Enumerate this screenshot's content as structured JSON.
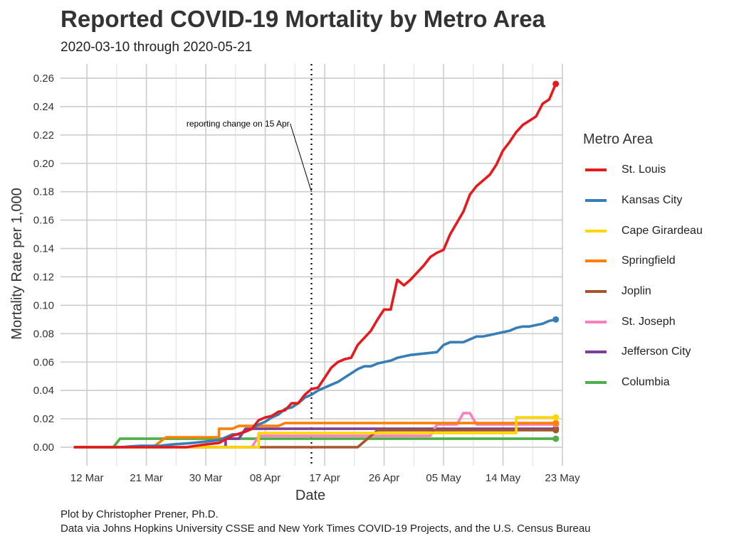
{
  "title": "Reported COVID-19 Mortality by Metro Area",
  "subtitle": "2020-03-10 through 2020-05-21",
  "caption_line1": "Plot by Christopher Prener, Ph.D.",
  "caption_line2": "Data via Johns Hopkins University CSSE and New York Times COVID-19 Projects, and the U.S. Census Bureau",
  "chart_data": {
    "type": "line",
    "xlabel": "Date",
    "ylabel": "Mortality Rate per 1,000",
    "xlim": [
      "2020-03-08",
      "2020-05-23"
    ],
    "ylim": [
      -0.013,
      0.27
    ],
    "x_ticks": [
      "2020-03-12",
      "2020-03-21",
      "2020-03-30",
      "2020-04-08",
      "2020-04-17",
      "2020-04-26",
      "2020-05-05",
      "2020-05-14",
      "2020-05-23"
    ],
    "x_tick_labels": [
      "12 Mar",
      "21 Mar",
      "30 Mar",
      "08 Apr",
      "17 Apr",
      "26 Apr",
      "05 May",
      "14 May",
      "23 May"
    ],
    "y_ticks": [
      0,
      0.02,
      0.04,
      0.06,
      0.08,
      0.1,
      0.12,
      0.14,
      0.16,
      0.18,
      0.2,
      0.22,
      0.24,
      0.26
    ],
    "y_tick_labels": [
      "0.00",
      "0.02",
      "0.04",
      "0.06",
      "0.08",
      "0.10",
      "0.12",
      "0.14",
      "0.16",
      "0.18",
      "0.20",
      "0.22",
      "0.24",
      "0.26"
    ],
    "grid": true,
    "legend_title": "Metro Area",
    "legend_position": "right",
    "annotation": {
      "date": "2020-04-15",
      "text": "reporting change on 15 Apr",
      "text_date": "2020-04-12",
      "text_y": 0.228,
      "arrow_end_y": 0.18
    },
    "series": [
      {
        "name": "St. Louis",
        "color": "#e41a1c",
        "points": [
          [
            "2020-03-10",
            0
          ],
          [
            "2020-03-27",
            0
          ],
          [
            "2020-03-30",
            0.002
          ],
          [
            "2020-04-01",
            0.003
          ],
          [
            "2020-04-03",
            0.008
          ],
          [
            "2020-04-05",
            0.011
          ],
          [
            "2020-04-06",
            0.013
          ],
          [
            "2020-04-07",
            0.019
          ],
          [
            "2020-04-08",
            0.021
          ],
          [
            "2020-04-09",
            0.022
          ],
          [
            "2020-04-10",
            0.025
          ],
          [
            "2020-04-11",
            0.026
          ],
          [
            "2020-04-12",
            0.031
          ],
          [
            "2020-04-13",
            0.031
          ],
          [
            "2020-04-14",
            0.037
          ],
          [
            "2020-04-15",
            0.041
          ],
          [
            "2020-04-16",
            0.042
          ],
          [
            "2020-04-17",
            0.049
          ],
          [
            "2020-04-18",
            0.056
          ],
          [
            "2020-04-19",
            0.06
          ],
          [
            "2020-04-20",
            0.062
          ],
          [
            "2020-04-21",
            0.063
          ],
          [
            "2020-04-22",
            0.072
          ],
          [
            "2020-04-23",
            0.077
          ],
          [
            "2020-04-24",
            0.082
          ],
          [
            "2020-04-25",
            0.09
          ],
          [
            "2020-04-26",
            0.097
          ],
          [
            "2020-04-27",
            0.097
          ],
          [
            "2020-04-28",
            0.118
          ],
          [
            "2020-04-29",
            0.114
          ],
          [
            "2020-04-30",
            0.118
          ],
          [
            "2020-05-01",
            0.123
          ],
          [
            "2020-05-02",
            0.128
          ],
          [
            "2020-05-03",
            0.134
          ],
          [
            "2020-05-04",
            0.137
          ],
          [
            "2020-05-05",
            0.139
          ],
          [
            "2020-05-06",
            0.15
          ],
          [
            "2020-05-07",
            0.158
          ],
          [
            "2020-05-08",
            0.166
          ],
          [
            "2020-05-09",
            0.178
          ],
          [
            "2020-05-10",
            0.184
          ],
          [
            "2020-05-11",
            0.188
          ],
          [
            "2020-05-12",
            0.192
          ],
          [
            "2020-05-13",
            0.199
          ],
          [
            "2020-05-14",
            0.209
          ],
          [
            "2020-05-15",
            0.215
          ],
          [
            "2020-05-16",
            0.222
          ],
          [
            "2020-05-17",
            0.227
          ],
          [
            "2020-05-18",
            0.23
          ],
          [
            "2020-05-19",
            0.233
          ],
          [
            "2020-05-20",
            0.242
          ],
          [
            "2020-05-21",
            0.245
          ],
          [
            "2020-05-22",
            0.256
          ]
        ]
      },
      {
        "name": "Kansas City",
        "color": "#377eb8",
        "points": [
          [
            "2020-03-10",
            0
          ],
          [
            "2020-03-17",
            0
          ],
          [
            "2020-03-20",
            0.001
          ],
          [
            "2020-03-23",
            0.001
          ],
          [
            "2020-03-25",
            0.002
          ],
          [
            "2020-03-28",
            0.003
          ],
          [
            "2020-03-30",
            0.004
          ],
          [
            "2020-04-01",
            0.005
          ],
          [
            "2020-04-03",
            0.009
          ],
          [
            "2020-04-04",
            0.009
          ],
          [
            "2020-04-05",
            0.011
          ],
          [
            "2020-04-06",
            0.013
          ],
          [
            "2020-04-07",
            0.016
          ],
          [
            "2020-04-08",
            0.018
          ],
          [
            "2020-04-09",
            0.021
          ],
          [
            "2020-04-10",
            0.023
          ],
          [
            "2020-04-11",
            0.027
          ],
          [
            "2020-04-12",
            0.028
          ],
          [
            "2020-04-13",
            0.031
          ],
          [
            "2020-04-14",
            0.035
          ],
          [
            "2020-04-15",
            0.037
          ],
          [
            "2020-04-16",
            0.04
          ],
          [
            "2020-04-17",
            0.042
          ],
          [
            "2020-04-18",
            0.044
          ],
          [
            "2020-04-19",
            0.046
          ],
          [
            "2020-04-20",
            0.049
          ],
          [
            "2020-04-21",
            0.052
          ],
          [
            "2020-04-22",
            0.055
          ],
          [
            "2020-04-23",
            0.057
          ],
          [
            "2020-04-24",
            0.057
          ],
          [
            "2020-04-25",
            0.059
          ],
          [
            "2020-04-26",
            0.06
          ],
          [
            "2020-04-27",
            0.061
          ],
          [
            "2020-04-28",
            0.063
          ],
          [
            "2020-04-29",
            0.064
          ],
          [
            "2020-04-30",
            0.065
          ],
          [
            "2020-05-02",
            0.066
          ],
          [
            "2020-05-04",
            0.067
          ],
          [
            "2020-05-05",
            0.072
          ],
          [
            "2020-05-06",
            0.074
          ],
          [
            "2020-05-08",
            0.074
          ],
          [
            "2020-05-09",
            0.076
          ],
          [
            "2020-05-10",
            0.078
          ],
          [
            "2020-05-11",
            0.078
          ],
          [
            "2020-05-12",
            0.079
          ],
          [
            "2020-05-13",
            0.08
          ],
          [
            "2020-05-14",
            0.081
          ],
          [
            "2020-05-15",
            0.082
          ],
          [
            "2020-05-16",
            0.084
          ],
          [
            "2020-05-17",
            0.085
          ],
          [
            "2020-05-18",
            0.085
          ],
          [
            "2020-05-19",
            0.086
          ],
          [
            "2020-05-20",
            0.087
          ],
          [
            "2020-05-21",
            0.089
          ],
          [
            "2020-05-22",
            0.09
          ]
        ]
      },
      {
        "name": "Cape Girardeau",
        "color": "#ffd700",
        "points": [
          [
            "2020-03-10",
            0
          ],
          [
            "2020-04-07",
            0
          ],
          [
            "2020-04-07",
            0.01
          ],
          [
            "2020-05-16",
            0.01
          ],
          [
            "2020-05-16",
            0.021
          ],
          [
            "2020-05-22",
            0.021
          ]
        ]
      },
      {
        "name": "Springfield",
        "color": "#ff7f00",
        "points": [
          [
            "2020-03-10",
            0
          ],
          [
            "2020-03-22",
            0
          ],
          [
            "2020-03-24",
            0.007
          ],
          [
            "2020-04-01",
            0.007
          ],
          [
            "2020-04-01",
            0.013
          ],
          [
            "2020-04-03",
            0.013
          ],
          [
            "2020-04-04",
            0.015
          ],
          [
            "2020-04-10",
            0.015
          ],
          [
            "2020-04-11",
            0.017
          ],
          [
            "2020-05-22",
            0.017
          ]
        ]
      },
      {
        "name": "Joplin",
        "color": "#a65628",
        "points": [
          [
            "2020-03-10",
            0
          ],
          [
            "2020-04-22",
            0
          ],
          [
            "2020-04-25",
            0.012
          ],
          [
            "2020-05-22",
            0.012
          ]
        ]
      },
      {
        "name": "St. Joseph",
        "color": "#f781bf",
        "points": [
          [
            "2020-03-10",
            0
          ],
          [
            "2020-04-06",
            0
          ],
          [
            "2020-04-07",
            0.008
          ],
          [
            "2020-05-03",
            0.008
          ],
          [
            "2020-05-04",
            0.016
          ],
          [
            "2020-05-07",
            0.016
          ],
          [
            "2020-05-08",
            0.024
          ],
          [
            "2020-05-09",
            0.024
          ],
          [
            "2020-05-10",
            0.016
          ],
          [
            "2020-05-22",
            0.016
          ]
        ]
      },
      {
        "name": "Jefferson City",
        "color": "#7b3e9a",
        "points": [
          [
            "2020-03-10",
            0
          ],
          [
            "2020-04-02",
            0
          ],
          [
            "2020-04-02",
            0.006
          ],
          [
            "2020-04-04",
            0.006
          ],
          [
            "2020-04-05",
            0.013
          ],
          [
            "2020-05-22",
            0.013
          ]
        ]
      },
      {
        "name": "Columbia",
        "color": "#4daf4a",
        "points": [
          [
            "2020-03-10",
            0
          ],
          [
            "2020-03-16",
            0
          ],
          [
            "2020-03-17",
            0.006
          ],
          [
            "2020-05-22",
            0.006
          ]
        ]
      }
    ]
  }
}
